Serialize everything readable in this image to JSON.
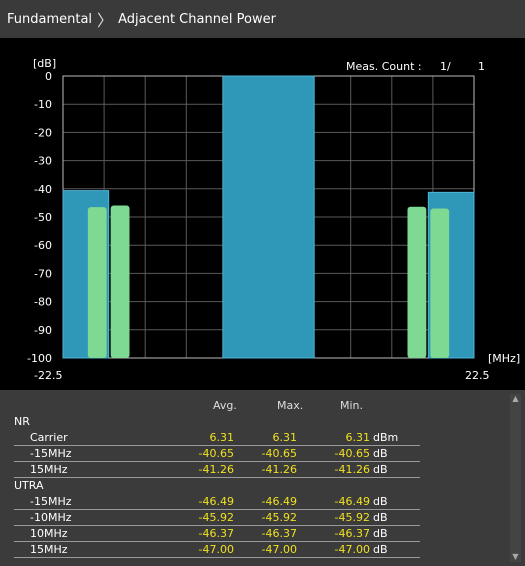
{
  "breadcrumb": {
    "root": "Fundamental",
    "current": "Adjacent Channel Power"
  },
  "plot": {
    "y_unit": "[dB]",
    "x_unit": "[MHz]",
    "meas_count_label": "Meas. Count :",
    "meas_count_current": "1/",
    "meas_count_total": "1",
    "y_ticks": [
      "0",
      "-10",
      "-20",
      "-30",
      "-40",
      "-50",
      "-60",
      "-70",
      "-80",
      "-90",
      "-100"
    ],
    "x_start": "-22.5",
    "x_end": "22.5",
    "colors": {
      "channel": "#2f97b8",
      "adjacent": "#7ed992",
      "grid": "#5a5a5a"
    }
  },
  "chart_data": {
    "type": "bar",
    "ylabel": "[dB]",
    "xlabel": "[MHz]",
    "xlim": [
      -22.5,
      22.5
    ],
    "ylim": [
      -100,
      0
    ],
    "series": [
      {
        "name": "NR",
        "bars": [
          {
            "x0": -22.5,
            "x1": -17.5,
            "value": -40.65
          },
          {
            "x0": -5.0,
            "x1": 5.0,
            "value": 0
          },
          {
            "x0": 17.5,
            "x1": 22.5,
            "value": -41.26
          }
        ]
      },
      {
        "name": "UTRA",
        "bars": [
          {
            "x0": -20.0,
            "x1": -17.5,
            "value": -46.49
          },
          {
            "x0": -17.5,
            "x1": -15.0,
            "value": -45.92
          },
          {
            "x0": 15.0,
            "x1": 17.5,
            "value": -46.37
          },
          {
            "x0": 17.5,
            "x1": 20.0,
            "value": -47.0
          }
        ]
      }
    ]
  },
  "table": {
    "headers": {
      "avg": "Avg.",
      "max": "Max.",
      "min": "Min."
    },
    "rows": [
      {
        "type": "group",
        "name": "NR"
      },
      {
        "type": "row",
        "name": "Carrier",
        "avg": "6.31",
        "max": "6.31",
        "min": "6.31",
        "unit": "dBm"
      },
      {
        "type": "row",
        "name": "-15MHz",
        "avg": "-40.65",
        "max": "-40.65",
        "min": "-40.65",
        "unit": "dB"
      },
      {
        "type": "row",
        "name": "15MHz",
        "avg": "-41.26",
        "max": "-41.26",
        "min": "-41.26",
        "unit": "dB"
      },
      {
        "type": "group",
        "name": "UTRA"
      },
      {
        "type": "row",
        "name": "-15MHz",
        "avg": "-46.49",
        "max": "-46.49",
        "min": "-46.49",
        "unit": "dB"
      },
      {
        "type": "row",
        "name": "-10MHz",
        "avg": "-45.92",
        "max": "-45.92",
        "min": "-45.92",
        "unit": "dB"
      },
      {
        "type": "row",
        "name": "10MHz",
        "avg": "-46.37",
        "max": "-46.37",
        "min": "-46.37",
        "unit": "dB"
      },
      {
        "type": "row",
        "name": "15MHz",
        "avg": "-47.00",
        "max": "-47.00",
        "min": "-47.00",
        "unit": "dB"
      }
    ]
  }
}
